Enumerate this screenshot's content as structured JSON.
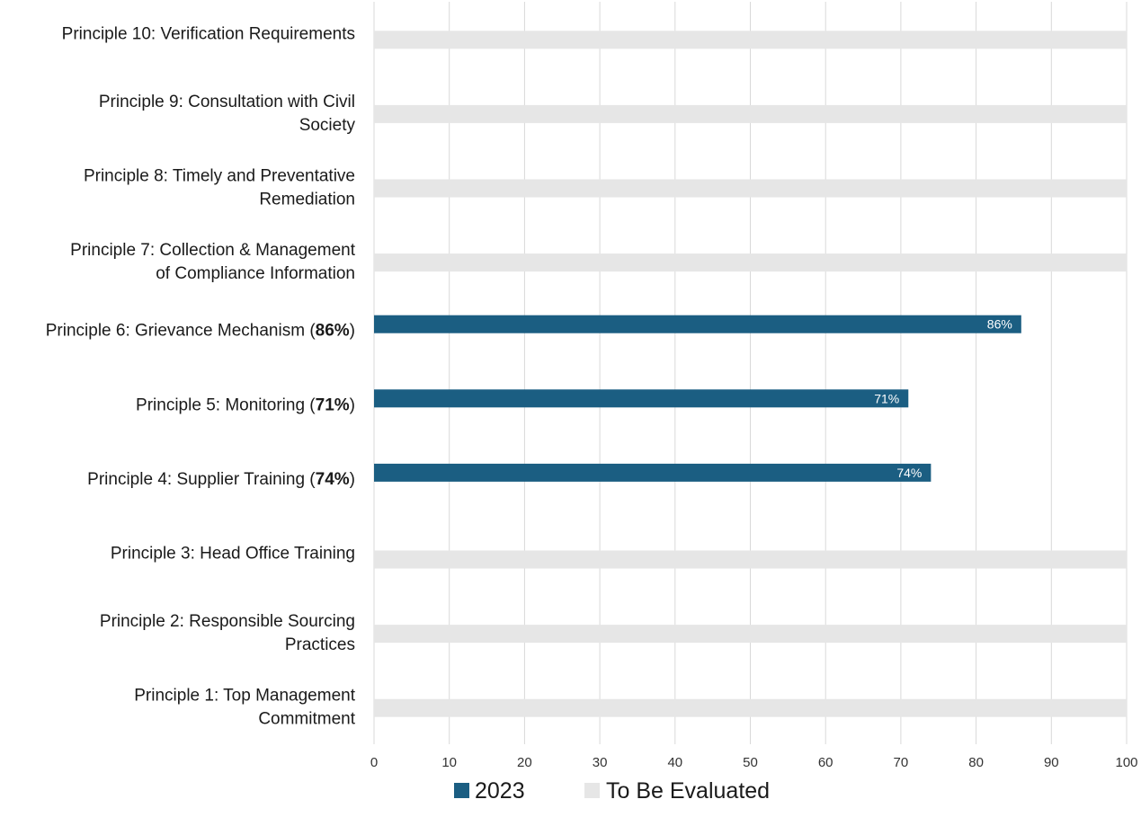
{
  "chart_data": {
    "type": "bar",
    "orientation": "horizontal",
    "categories": [
      {
        "lines": [
          "Principle 10: Verification Requirements"
        ],
        "bold": ""
      },
      {
        "lines": [
          "Principle 9: Consultation with Civil",
          "Society"
        ],
        "bold": ""
      },
      {
        "lines": [
          "Principle 8: Timely and Preventative",
          "Remediation"
        ],
        "bold": ""
      },
      {
        "lines": [
          "Principle 7: Collection & Management",
          "of Compliance Information"
        ],
        "bold": ""
      },
      {
        "lines": [
          "Principle 6: Grievance Mechanism ("
        ],
        "bold": "86%",
        "suffix": ")"
      },
      {
        "lines": [
          "Principle 5: Monitoring ("
        ],
        "bold": "71%",
        "suffix": ")"
      },
      {
        "lines": [
          "Principle 4: Supplier Training ("
        ],
        "bold": "74%",
        "suffix": ")"
      },
      {
        "lines": [
          "Principle 3: Head Office Training"
        ],
        "bold": ""
      },
      {
        "lines": [
          "Principle 2: Responsible Sourcing",
          "Practices"
        ],
        "bold": ""
      },
      {
        "lines": [
          "Principle 1: Top Management",
          "Commitment"
        ],
        "bold": ""
      }
    ],
    "series": [
      {
        "name": "2023",
        "color": "#1b5e82",
        "values": [
          null,
          null,
          null,
          null,
          86,
          71,
          74,
          null,
          null,
          null
        ],
        "data_labels": [
          "",
          "",
          "",
          "",
          "86%",
          "71%",
          "74%",
          "",
          "",
          ""
        ]
      },
      {
        "name": "To Be Evaluated",
        "color": "#e6e6e6",
        "values": [
          100,
          100,
          100,
          100,
          null,
          null,
          null,
          100,
          100,
          100
        ]
      }
    ],
    "xlim": [
      0,
      100
    ],
    "xticks": [
      0,
      10,
      20,
      30,
      40,
      50,
      60,
      70,
      80,
      90,
      100
    ],
    "grid": "vertical",
    "legend": "bottom-center",
    "title": "",
    "xlabel": "",
    "ylabel": ""
  }
}
